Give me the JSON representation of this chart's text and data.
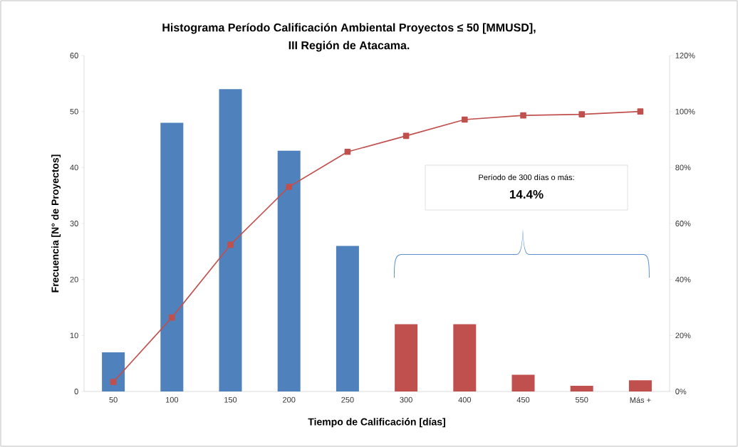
{
  "chart_data": {
    "type": "bar",
    "title": "Histograma Período Calificación Ambiental  Proyectos ≤ 50 [MMUSD],",
    "subtitle": "III Región de Atacama.",
    "xlabel": "Tiempo de Calificación  [días]",
    "ylabel": "Frecuencia [N° de Proyectos]",
    "categories": [
      "50",
      "100",
      "150",
      "200",
      "250",
      "300",
      "400",
      "450",
      "550",
      "Más +"
    ],
    "series": [
      {
        "values": [
          7,
          48,
          54,
          43,
          26,
          12,
          12,
          3,
          1,
          2
        ],
        "colors": [
          "#4f81bd",
          "#4f81bd",
          "#4f81bd",
          "#4f81bd",
          "#4f81bd",
          "#c0504d",
          "#c0504d",
          "#c0504d",
          "#c0504d",
          "#c0504d"
        ]
      },
      {
        "type": "line",
        "axis": "y2",
        "color": "#c0504d",
        "values": [
          3.4,
          26.4,
          52.4,
          73.1,
          85.6,
          91.3,
          97.1,
          98.6,
          99.0,
          100
        ]
      }
    ],
    "marker": "square",
    "ylim": [
      0,
      60
    ],
    "yticks": [
      0,
      10,
      20,
      30,
      40,
      50,
      60
    ],
    "y2lim": [
      0,
      120
    ],
    "y2ticks": [
      {
        "value": 0,
        "label": "0%"
      },
      {
        "value": 20,
        "label": "20%"
      },
      {
        "value": 40,
        "label": "40%"
      },
      {
        "value": 60,
        "label": "60%"
      },
      {
        "value": 80,
        "label": "80%"
      },
      {
        "value": 100,
        "label": "100%"
      },
      {
        "value": 120,
        "label": "120%"
      }
    ],
    "annotations": [
      "Período de 300 días o más:",
      "14.4%"
    ],
    "grid": false
  }
}
